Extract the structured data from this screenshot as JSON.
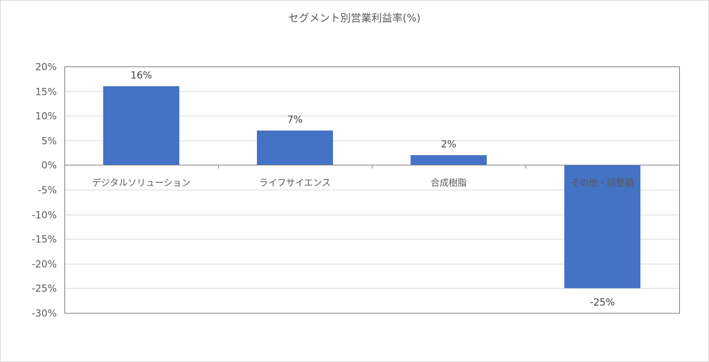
{
  "chart_data": {
    "type": "bar",
    "title": "セグメント別営業利益率(%)",
    "categories": [
      "デジタルソリューション",
      "ライフサイエンス",
      "合成樹脂",
      "その他・調整額"
    ],
    "values": [
      16,
      7,
      2,
      -25
    ],
    "data_labels": [
      "16%",
      "7%",
      "2%",
      "-25%"
    ],
    "y_ticks": [
      20,
      15,
      10,
      5,
      0,
      -5,
      -10,
      -15,
      -20,
      -25,
      -30
    ],
    "y_tick_labels": [
      "20%",
      "15%",
      "10%",
      "5%",
      "0%",
      "-5%",
      "-10%",
      "-15%",
      "-20%",
      "-25%",
      "-30%"
    ],
    "ylim": [
      -30,
      20
    ],
    "xlabel": "",
    "ylabel": "",
    "grid": true,
    "legend": "none",
    "bar_color": "#4472c4"
  }
}
